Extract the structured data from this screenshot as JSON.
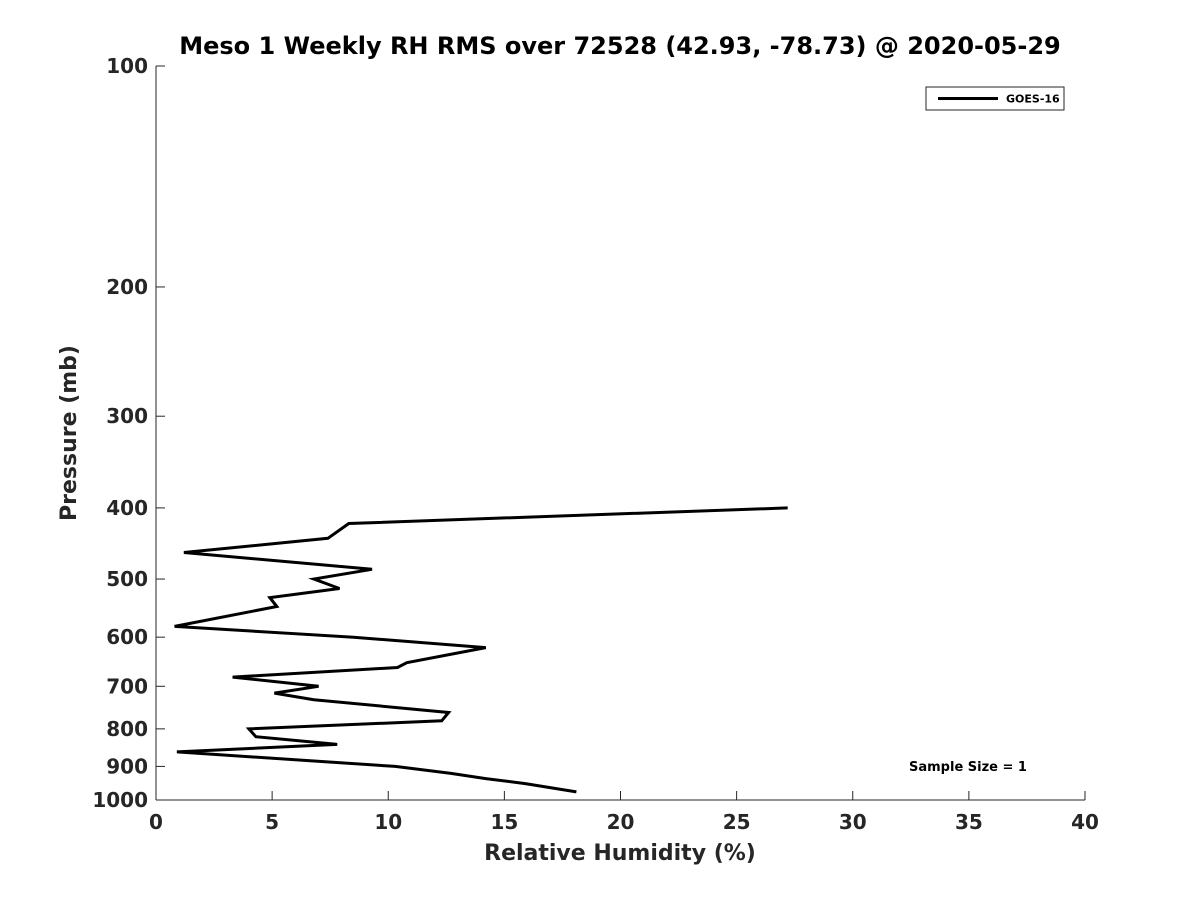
{
  "chart_data": {
    "type": "line",
    "title": "Meso 1 Weekly RH RMS over 72528 (42.93, -78.73) @ 2020-05-29",
    "xlabel": "Relative Humidity (%)",
    "ylabel": "Pressure (mb)",
    "xlim": [
      0,
      40
    ],
    "ylim": [
      100,
      1000
    ],
    "y_scale": "log",
    "y_reversed": true,
    "x_ticks": [
      0,
      5,
      10,
      15,
      20,
      25,
      30,
      35,
      40
    ],
    "y_ticks": [
      100,
      200,
      300,
      400,
      500,
      600,
      700,
      800,
      900,
      1000
    ],
    "grid": false,
    "legend_position": "top-right",
    "annotation": "Sample Size = 1",
    "series": [
      {
        "name": "GOES-16",
        "color": "#000000",
        "points": [
          [
            27.2,
            400
          ],
          [
            8.3,
            420
          ],
          [
            7.4,
            440
          ],
          [
            1.2,
            460
          ],
          [
            9.3,
            485
          ],
          [
            6.8,
            500
          ],
          [
            7.9,
            515
          ],
          [
            4.9,
            530
          ],
          [
            5.2,
            545
          ],
          [
            0.8,
            580
          ],
          [
            8.5,
            600
          ],
          [
            14.2,
            620
          ],
          [
            10.8,
            650
          ],
          [
            10.4,
            660
          ],
          [
            3.3,
            680
          ],
          [
            7.0,
            700
          ],
          [
            5.1,
            715
          ],
          [
            6.8,
            730
          ],
          [
            12.6,
            760
          ],
          [
            12.3,
            780
          ],
          [
            4.0,
            800
          ],
          [
            4.3,
            820
          ],
          [
            7.8,
            840
          ],
          [
            0.9,
            860
          ],
          [
            10.3,
            900
          ],
          [
            12.7,
            920
          ],
          [
            14.2,
            935
          ],
          [
            15.9,
            950
          ],
          [
            18.1,
            975
          ]
        ]
      }
    ]
  }
}
